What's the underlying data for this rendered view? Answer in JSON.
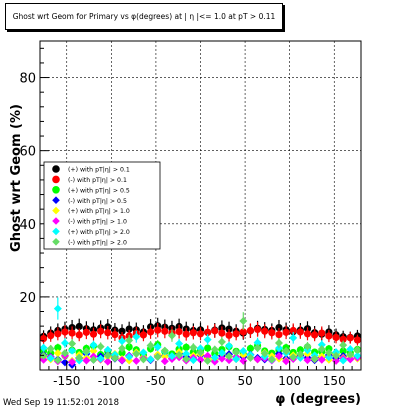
{
  "title": "Ghost wrt Geom for Primary vs φ(degrees) at | η |<= 1.0 at pT > 0.11",
  "timestamp": "Wed Sep 19 11:52:01 2018",
  "chart_data": {
    "type": "scatter",
    "title": "Ghost wrt Geom for Primary vs φ(degrees) at | η |<= 1.0 at pT > 0.11",
    "xlabel": "φ (degrees)",
    "ylabel": "Ghost wrt Geom (%)",
    "xlim": [
      -180,
      180
    ],
    "ylim": [
      0,
      90
    ],
    "xticks": [
      -150,
      -100,
      -50,
      0,
      50,
      100,
      150
    ],
    "yticks": [
      20,
      40,
      60,
      80
    ],
    "grid": true,
    "legend_position": "middle-left",
    "x": [
      -176,
      -168,
      -160,
      -152,
      -144,
      -136,
      -128,
      -120,
      -112,
      -104,
      -96,
      -88,
      -80,
      -72,
      -64,
      -56,
      -48,
      -40,
      -32,
      -24,
      -16,
      -8,
      0,
      8,
      16,
      24,
      32,
      40,
      48,
      56,
      64,
      72,
      80,
      88,
      96,
      104,
      112,
      120,
      128,
      136,
      144,
      152,
      160,
      168,
      176
    ],
    "series": [
      {
        "name": "(+) with pT|η| > 0.1",
        "color": "#000000",
        "marker": "circle",
        "values": [
          9.2,
          10.1,
          10.8,
          11.2,
          11.6,
          11.9,
          11.3,
          11.0,
          11.5,
          11.8,
          10.9,
          10.6,
          11.2,
          11.0,
          10.4,
          11.8,
          12.1,
          11.7,
          11.4,
          11.9,
          11.2,
          10.8,
          11.0,
          10.3,
          10.9,
          11.5,
          11.2,
          10.6,
          10.1,
          10.7,
          11.4,
          11.1,
          10.8,
          11.6,
          11.0,
          10.5,
          10.9,
          11.3,
          10.2,
          9.8,
          10.4,
          9.6,
          9.1,
          8.9,
          9.3
        ]
      },
      {
        "name": "(-) with pT|η| > 0.1",
        "color": "#ff0000",
        "marker": "circle",
        "values": [
          8.6,
          9.4,
          9.9,
          10.4,
          10.1,
          9.6,
          10.3,
          9.8,
          10.6,
          10.2,
          9.7,
          8.8,
          9.3,
          10.0,
          9.6,
          10.4,
          10.9,
          10.6,
          10.1,
          10.5,
          9.8,
          10.2,
          9.9,
          10.3,
          10.7,
          10.1,
          9.5,
          9.9,
          10.4,
          10.8,
          11.1,
          10.6,
          10.2,
          9.7,
          10.3,
          10.8,
          10.4,
          9.9,
          9.6,
          10.1,
          9.3,
          8.9,
          8.4,
          8.8,
          8.2
        ]
      },
      {
        "name": "(+) with pT|η| > 0.5",
        "color": "#00ff00",
        "marker": "circle",
        "values": [
          5.2,
          4.6,
          6.1,
          3.9,
          5.4,
          4.8,
          5.9,
          6.6,
          4.2,
          5.1,
          3.6,
          4.7,
          6.3,
          5.5,
          4.1,
          5.8,
          6.9,
          5.0,
          4.4,
          5.7,
          6.2,
          4.9,
          5.3,
          6.0,
          4.5,
          5.6,
          6.4,
          5.1,
          4.3,
          5.9,
          6.7,
          5.2,
          4.6,
          5.4,
          6.1,
          4.8,
          5.5,
          6.3,
          4.9,
          5.0,
          5.8,
          4.4,
          5.2,
          4.7,
          5.6
        ]
      },
      {
        "name": "(-) with pT|η| > 0.5",
        "color": "#0000ff",
        "marker": "diamond",
        "values": [
          4.1,
          3.6,
          2.9,
          2.1,
          1.4,
          3.3,
          4.4,
          2.8,
          3.7,
          4.2,
          3.1,
          2.6,
          3.9,
          4.6,
          3.4,
          2.7,
          4.1,
          3.8,
          3.2,
          4.5,
          3.6,
          2.9,
          4.0,
          3.5,
          2.8,
          3.9,
          4.3,
          3.0,
          3.6,
          4.2,
          3.3,
          2.9,
          3.8,
          4.4,
          3.1,
          3.7,
          4.0,
          3.4,
          2.7,
          3.5,
          4.1,
          3.2,
          3.8,
          3.0,
          3.6
        ]
      },
      {
        "name": "(+) with pT|η| > 1.0",
        "color": "#ffff00",
        "marker": "diamond",
        "values": [
          3.4,
          2.9,
          4.6,
          3.8,
          2.5,
          4.1,
          3.3,
          5.2,
          2.8,
          3.6,
          4.4,
          3.0,
          2.6,
          4.8,
          3.5,
          2.9,
          4.2,
          3.7,
          3.1,
          4.9,
          2.7,
          3.9,
          4.3,
          3.2,
          2.8,
          4.5,
          3.6,
          3.0,
          4.1,
          3.4,
          2.9,
          4.7,
          3.8,
          3.1,
          2.6,
          4.0,
          3.5,
          4.4,
          3.0,
          3.7,
          2.8,
          4.2,
          3.3,
          3.9,
          3.1
        ]
      },
      {
        "name": "(-) with pT|η| > 1.0",
        "color": "#ff00ff",
        "marker": "diamond",
        "values": [
          2.8,
          3.5,
          2.4,
          3.9,
          2.2,
          3.1,
          2.6,
          3.7,
          2.9,
          2.3,
          3.4,
          2.7,
          3.8,
          2.5,
          3.2,
          2.9,
          3.6,
          2.4,
          3.0,
          3.5,
          2.6,
          3.3,
          2.8,
          3.9,
          2.3,
          3.1,
          2.7,
          3.6,
          2.5,
          3.4,
          2.9,
          3.2,
          2.6,
          3.8,
          2.4,
          3.0,
          3.5,
          2.7,
          3.3,
          2.8,
          3.6,
          2.5,
          3.1,
          2.9,
          3.4
        ]
      },
      {
        "name": "(+) with pT|η| > 2.0",
        "color": "#00ffff",
        "marker": "diamond",
        "values": [
          6.1,
          3.2,
          16.8,
          7.4,
          5.3,
          2.6,
          4.9,
          6.8,
          3.1,
          5.5,
          4.2,
          7.9,
          3.6,
          9.1,
          4.8,
          2.9,
          6.3,
          5.1,
          3.8,
          7.2,
          4.4,
          2.7,
          5.9,
          8.3,
          3.4,
          4.7,
          6.6,
          3.0,
          5.2,
          4.1,
          7.5,
          3.7,
          2.8,
          6.0,
          4.6,
          8.8,
          3.3,
          5.4,
          4.0,
          6.9,
          3.5,
          4.9,
          2.6,
          5.7,
          3.9
        ]
      },
      {
        "name": "(-) with pT|η| > 2.0",
        "color": "#66dd66",
        "marker": "diamond",
        "values": [
          3.9,
          5.8,
          2.7,
          4.6,
          7.2,
          3.4,
          5.1,
          2.8,
          6.4,
          4.0,
          3.2,
          5.9,
          8.1,
          4.4,
          2.9,
          6.7,
          3.6,
          5.3,
          9.4,
          4.1,
          3.0,
          6.2,
          4.8,
          2.5,
          5.6,
          7.7,
          3.8,
          4.9,
          13.4,
          3.3,
          6.0,
          4.5,
          2.9,
          7.4,
          5.2,
          3.5,
          4.3,
          6.5,
          3.1,
          5.7,
          4.7,
          3.9,
          6.8,
          4.2,
          5.5
        ]
      }
    ]
  }
}
